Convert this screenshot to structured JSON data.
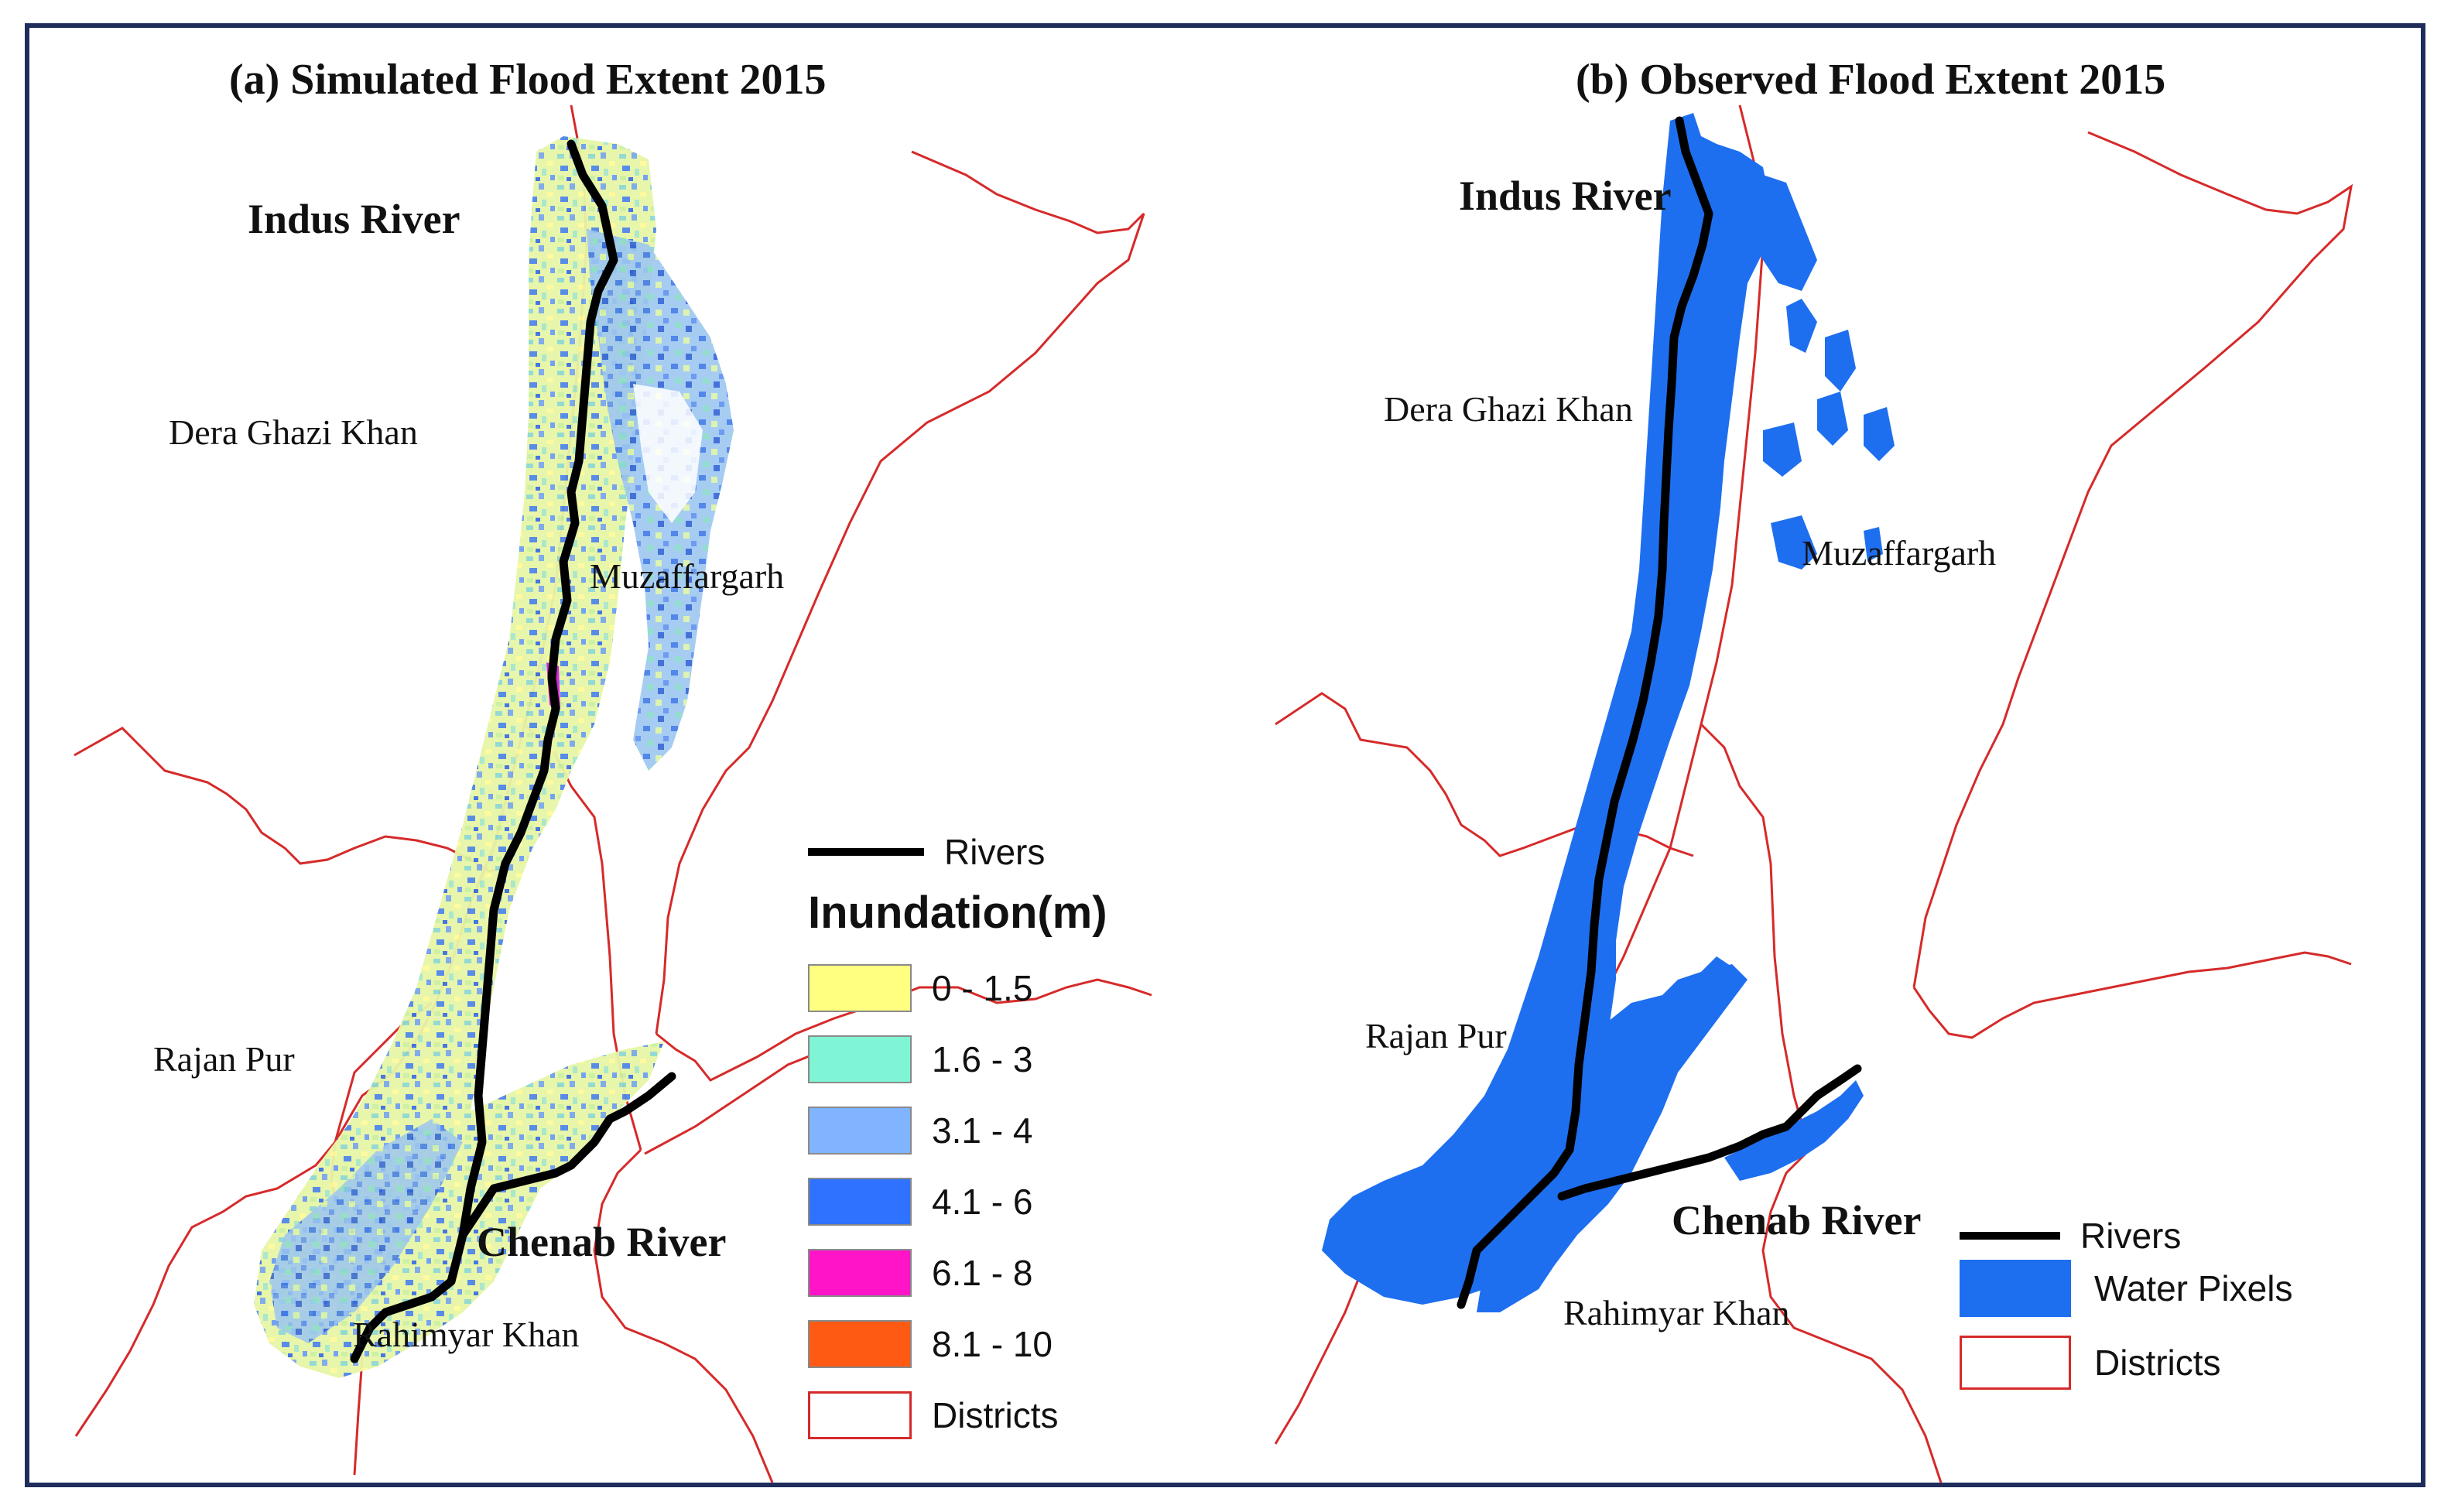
{
  "panel_a": {
    "title": "(a) Simulated Flood Extent 2015",
    "rivers": {
      "indus": "Indus River",
      "chenab": "Chenab River"
    },
    "districts": {
      "dera_ghazi_khan": "Dera Ghazi Khan",
      "muzaffargarh": "Muzaffargarh",
      "rajan_pur": "Rajan Pur",
      "rahimyar_khan": "Rahimyar Khan"
    },
    "legend": {
      "rivers": "Rivers",
      "title": "Inundation(m)",
      "classes": [
        {
          "label": "0 - 1.5",
          "color": "#ffff80"
        },
        {
          "label": "1.6 - 3",
          "color": "#7ff5d5"
        },
        {
          "label": "3.1 - 4",
          "color": "#80b4ff"
        },
        {
          "label": "4.1 - 6",
          "color": "#2f72ff"
        },
        {
          "label": "6.1 - 8",
          "color": "#ff14c8"
        },
        {
          "label": "8.1 - 10",
          "color": "#ff5a14"
        }
      ],
      "districts": "Districts"
    }
  },
  "panel_b": {
    "title": "(b) Observed Flood Extent 2015",
    "rivers": {
      "indus": "Indus River",
      "chenab": "Chenab River"
    },
    "districts": {
      "dera_ghazi_khan": "Dera Ghazi Khan",
      "muzaffargarh": "Muzaffargarh",
      "rajan_pur": "Rajan Pur",
      "rahimyar_khan": "Rahimyar Khan"
    },
    "legend": {
      "rivers": "Rivers",
      "water_pixels": "Water Pixels",
      "water_color": "#1e6ff0",
      "districts": "Districts"
    }
  },
  "colors": {
    "district_border": "#d62a2a",
    "river": "#000000",
    "frame": "#1f2d5c"
  }
}
